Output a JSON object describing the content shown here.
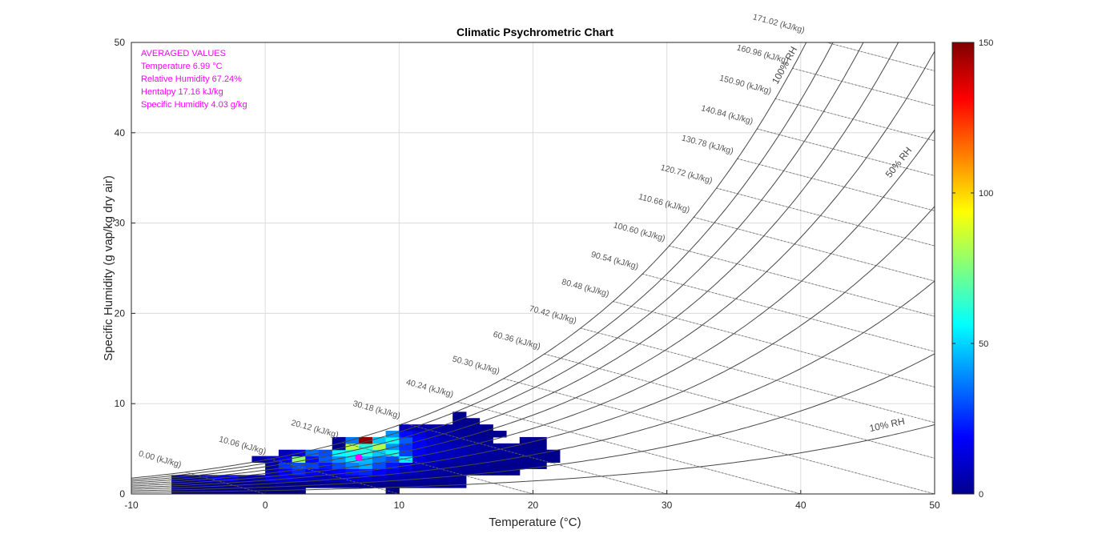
{
  "chart_data": {
    "type": "heatmap",
    "title": "Climatic Psychrometric Chart",
    "xlabel": "Temperature (°C)",
    "ylabel": "Specific Humidity (g vap/kg dry air)",
    "xlim": [
      -10,
      50
    ],
    "ylim": [
      0,
      50
    ],
    "x_ticks": [
      -10,
      0,
      10,
      20,
      30,
      40,
      50
    ],
    "y_ticks": [
      0,
      10,
      20,
      30,
      40,
      50
    ],
    "grid": true,
    "colorbar": {
      "colormap": "jet",
      "min": 0,
      "max": 150,
      "ticks": [
        0,
        50,
        100,
        150
      ],
      "position": "right"
    },
    "annotation_color": "#ff00ff",
    "annotations": [
      "AVERAGED VALUES",
      "Temperature  6.99 °C",
      "Relative Humidity 67.24%",
      "Hentalpy 17.16 kJ/kg",
      "Specific Humidity  4.03 g/kg"
    ],
    "averaged_point": {
      "temperature": 6.99,
      "specific_humidity": 4.03
    },
    "rh_curves": {
      "values": [
        10,
        20,
        30,
        40,
        50,
        60,
        70,
        80,
        90,
        100
      ],
      "labels": [
        {
          "text": "10% RH",
          "rh": 10
        },
        {
          "text": "50% RH",
          "rh": 50
        },
        {
          "text": "100% RH",
          "rh": 100
        }
      ]
    },
    "enthalpy_lines": {
      "values": [
        0.0,
        10.06,
        20.12,
        30.18,
        40.24,
        50.3,
        60.36,
        70.42,
        80.48,
        90.54,
        100.6,
        110.66,
        120.72,
        130.78,
        140.84,
        150.9,
        160.96,
        171.02
      ],
      "labels": [
        "0.00 (kJ/kg)",
        "10.06 (kJ/kg)",
        "20.12 (kJ/kg)",
        "30.18 (kJ/kg)",
        "40.24 (kJ/kg)",
        "50.30 (kJ/kg)",
        "60.36 (kJ/kg)",
        "70.42 (kJ/kg)",
        "80.48 (kJ/kg)",
        "90.54 (kJ/kg)",
        "100.60 (kJ/kg)",
        "110.66 (kJ/kg)",
        "120.72 (kJ/kg)",
        "130.78 (kJ/kg)",
        "140.84 (kJ/kg)",
        "150.90 (kJ/kg)",
        "160.96 (kJ/kg)",
        "171.02 (kJ/kg)"
      ]
    },
    "heatmap_bin": {
      "dx": 1,
      "dy": 0.7
    },
    "heatmap_cells": [
      [
        -7,
        0,
        1
      ],
      [
        -6,
        0,
        1
      ],
      [
        -5,
        0,
        1
      ],
      [
        -4,
        0,
        1
      ],
      [
        -3,
        0,
        1
      ],
      [
        -2,
        0,
        1
      ],
      [
        -1,
        0,
        1
      ],
      [
        0,
        0,
        1
      ],
      [
        1,
        0,
        1
      ],
      [
        2,
        0,
        1
      ],
      [
        9,
        0,
        1
      ],
      [
        -7,
        0.7,
        2
      ],
      [
        -6,
        0.7,
        2
      ],
      [
        -5,
        0.7,
        3
      ],
      [
        -4,
        0.7,
        4
      ],
      [
        -3,
        0.7,
        3
      ],
      [
        -2,
        0.7,
        3
      ],
      [
        -1,
        0.7,
        2
      ],
      [
        0,
        0.7,
        2
      ],
      [
        1,
        0.7,
        2
      ],
      [
        2,
        0.7,
        2
      ],
      [
        3,
        0.7,
        2
      ],
      [
        4,
        0.7,
        2
      ],
      [
        5,
        0.7,
        2
      ],
      [
        6,
        0.7,
        2
      ],
      [
        7,
        0.7,
        2
      ],
      [
        8,
        0.7,
        2
      ],
      [
        9,
        0.7,
        2
      ],
      [
        10,
        0.7,
        2
      ],
      [
        11,
        0.7,
        2
      ],
      [
        12,
        0.7,
        2
      ],
      [
        13,
        0.7,
        2
      ],
      [
        14,
        0.7,
        2
      ],
      [
        -7,
        1.4,
        3
      ],
      [
        -6,
        1.4,
        4
      ],
      [
        -5,
        1.4,
        8
      ],
      [
        -4,
        1.4,
        18
      ],
      [
        -3,
        1.4,
        14
      ],
      [
        -2,
        1.4,
        6
      ],
      [
        -1,
        1.4,
        8
      ],
      [
        0,
        1.4,
        14
      ],
      [
        1,
        1.4,
        16
      ],
      [
        2,
        1.4,
        12
      ],
      [
        3,
        1.4,
        10
      ],
      [
        4,
        1.4,
        8
      ],
      [
        5,
        1.4,
        10
      ],
      [
        6,
        1.4,
        12
      ],
      [
        7,
        1.4,
        12
      ],
      [
        8,
        1.4,
        10
      ],
      [
        9,
        1.4,
        8
      ],
      [
        10,
        1.4,
        6
      ],
      [
        11,
        1.4,
        5
      ],
      [
        12,
        1.4,
        4
      ],
      [
        13,
        1.4,
        3
      ],
      [
        14,
        1.4,
        3
      ],
      [
        0,
        2.1,
        8
      ],
      [
        1,
        2.1,
        18
      ],
      [
        2,
        2.1,
        24
      ],
      [
        3,
        2.1,
        18
      ],
      [
        4,
        2.1,
        14
      ],
      [
        5,
        2.1,
        18
      ],
      [
        6,
        2.1,
        22
      ],
      [
        7,
        2.1,
        24
      ],
      [
        8,
        2.1,
        18
      ],
      [
        9,
        2.1,
        14
      ],
      [
        10,
        2.1,
        10
      ],
      [
        11,
        2.1,
        8
      ],
      [
        12,
        2.1,
        6
      ],
      [
        13,
        2.1,
        4
      ],
      [
        14,
        2.1,
        3
      ],
      [
        15,
        2.1,
        3
      ],
      [
        16,
        2.1,
        2
      ],
      [
        17,
        2.1,
        2
      ],
      [
        18,
        2.1,
        2
      ],
      [
        0,
        2.8,
        6
      ],
      [
        1,
        2.8,
        26
      ],
      [
        2,
        2.8,
        30
      ],
      [
        3,
        2.8,
        28
      ],
      [
        4,
        2.8,
        22
      ],
      [
        5,
        2.8,
        30
      ],
      [
        6,
        2.8,
        38
      ],
      [
        7,
        2.8,
        44
      ],
      [
        8,
        2.8,
        30
      ],
      [
        9,
        2.8,
        22
      ],
      [
        10,
        2.8,
        16
      ],
      [
        11,
        2.8,
        10
      ],
      [
        12,
        2.8,
        8
      ],
      [
        13,
        2.8,
        5
      ],
      [
        14,
        2.8,
        4
      ],
      [
        15,
        2.8,
        3
      ],
      [
        16,
        2.8,
        3
      ],
      [
        17,
        2.8,
        2
      ],
      [
        18,
        2.8,
        2
      ],
      [
        19,
        2.8,
        2
      ],
      [
        20,
        2.8,
        2
      ],
      [
        -1,
        3.5,
        6
      ],
      [
        0,
        3.5,
        10
      ],
      [
        1,
        3.5,
        18
      ],
      [
        2,
        3.5,
        78
      ],
      [
        3,
        3.5,
        20
      ],
      [
        4,
        3.5,
        32
      ],
      [
        5,
        3.5,
        40
      ],
      [
        6,
        3.5,
        52
      ],
      [
        7,
        3.5,
        46
      ],
      [
        8,
        3.5,
        36
      ],
      [
        9,
        3.5,
        30
      ],
      [
        10,
        3.5,
        54
      ],
      [
        11,
        3.5,
        14
      ],
      [
        12,
        3.5,
        10
      ],
      [
        13,
        3.5,
        8
      ],
      [
        14,
        3.5,
        6
      ],
      [
        15,
        3.5,
        5
      ],
      [
        16,
        3.5,
        4
      ],
      [
        17,
        3.5,
        3
      ],
      [
        18,
        3.5,
        3
      ],
      [
        19,
        3.5,
        2
      ],
      [
        20,
        3.5,
        2
      ],
      [
        21,
        3.5,
        2
      ],
      [
        1,
        4.2,
        8
      ],
      [
        2,
        4.2,
        14
      ],
      [
        3,
        4.2,
        34
      ],
      [
        4,
        4.2,
        30
      ],
      [
        5,
        4.2,
        56
      ],
      [
        6,
        4.2,
        58
      ],
      [
        7,
        4.2,
        60
      ],
      [
        8,
        4.2,
        48
      ],
      [
        9,
        4.2,
        58
      ],
      [
        10,
        4.2,
        28
      ],
      [
        11,
        4.2,
        16
      ],
      [
        12,
        4.2,
        12
      ],
      [
        13,
        4.2,
        10
      ],
      [
        14,
        4.2,
        8
      ],
      [
        15,
        4.2,
        6
      ],
      [
        16,
        4.2,
        5
      ],
      [
        17,
        4.2,
        4
      ],
      [
        18,
        4.2,
        3
      ],
      [
        19,
        4.2,
        3
      ],
      [
        20,
        4.2,
        2
      ],
      [
        21,
        4.2,
        2
      ],
      [
        5,
        4.9,
        2
      ],
      [
        6,
        4.9,
        84
      ],
      [
        7,
        4.9,
        60
      ],
      [
        8,
        4.9,
        82
      ],
      [
        9,
        4.9,
        40
      ],
      [
        10,
        4.9,
        26
      ],
      [
        11,
        4.9,
        18
      ],
      [
        12,
        4.9,
        12
      ],
      [
        13,
        4.9,
        10
      ],
      [
        14,
        4.9,
        8
      ],
      [
        15,
        4.9,
        6
      ],
      [
        16,
        4.9,
        4
      ],
      [
        17,
        4.9,
        3
      ],
      [
        18,
        4.9,
        3
      ],
      [
        19,
        4.9,
        2
      ],
      [
        20,
        4.9,
        2
      ],
      [
        5,
        5.6,
        3
      ],
      [
        6,
        5.6,
        36
      ],
      [
        7,
        5.6,
        148
      ],
      [
        8,
        5.6,
        48
      ],
      [
        9,
        5.6,
        58
      ],
      [
        10,
        5.6,
        32
      ],
      [
        11,
        5.6,
        18
      ],
      [
        12,
        5.6,
        12
      ],
      [
        13,
        5.6,
        8
      ],
      [
        14,
        5.6,
        6
      ],
      [
        15,
        5.6,
        4
      ],
      [
        16,
        5.6,
        3
      ],
      [
        19,
        5.6,
        2
      ],
      [
        20,
        5.6,
        2
      ],
      [
        9,
        6.3,
        40
      ],
      [
        10,
        6.3,
        20
      ],
      [
        11,
        6.3,
        14
      ],
      [
        12,
        6.3,
        10
      ],
      [
        13,
        6.3,
        6
      ],
      [
        14,
        6.3,
        4
      ],
      [
        15,
        6.3,
        3
      ],
      [
        16,
        6.3,
        2
      ],
      [
        17,
        6.3,
        2
      ],
      [
        10,
        7.0,
        8
      ],
      [
        11,
        7.0,
        6
      ],
      [
        12,
        7.0,
        5
      ],
      [
        13,
        7.0,
        4
      ],
      [
        14,
        7.0,
        4
      ],
      [
        15,
        7.0,
        3
      ],
      [
        16,
        7.0,
        2
      ],
      [
        14,
        7.7,
        2
      ],
      [
        15,
        7.7,
        2
      ],
      [
        14,
        8.4,
        2
      ]
    ]
  }
}
